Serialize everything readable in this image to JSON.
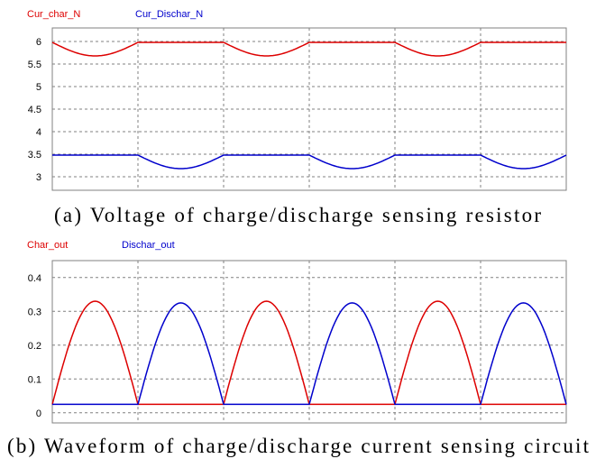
{
  "chart_data": [
    {
      "type": "line",
      "caption": "(a) Voltage of charge/discharge sensing resistor",
      "ylim": [
        2.7,
        6.3
      ],
      "yticks": [
        3,
        3.5,
        4,
        4.5,
        5,
        5.5,
        6
      ],
      "ytick_labels": [
        "3",
        "3.5",
        "4",
        "4.5",
        "5",
        "5.5",
        "6"
      ],
      "x_divisions": 6,
      "grid": true,
      "legend_position": "top-left",
      "series": [
        {
          "name": "Cur_char_N",
          "color": "#dd0000",
          "shape": "dips",
          "baseline": 5.98,
          "extreme": 5.68,
          "dip_periods": [
            0,
            2,
            4
          ]
        },
        {
          "name": "Cur_Dischar_N",
          "color": "#0000cc",
          "shape": "dips",
          "baseline": 3.48,
          "extreme": 3.18,
          "dip_periods": [
            1,
            3,
            5
          ]
        }
      ]
    },
    {
      "type": "line",
      "caption": "(b) Waveform of charge/discharge current sensing circuit",
      "ylim": [
        -0.03,
        0.45
      ],
      "yticks": [
        0,
        0.1,
        0.2,
        0.3,
        0.4
      ],
      "ytick_labels": [
        "0",
        "0.1",
        "0.2",
        "0.3",
        "0.4"
      ],
      "x_divisions": 6,
      "grid": true,
      "legend_position": "top-left",
      "series": [
        {
          "name": "Char_out",
          "color": "#dd0000",
          "shape": "humps",
          "baseline": 0.025,
          "extreme": 0.33,
          "hump_periods": [
            0,
            2,
            4
          ]
        },
        {
          "name": "Dischar_out",
          "color": "#0000cc",
          "shape": "humps",
          "baseline": 0.025,
          "extreme": 0.325,
          "hump_periods": [
            1,
            3,
            5
          ]
        }
      ]
    }
  ]
}
